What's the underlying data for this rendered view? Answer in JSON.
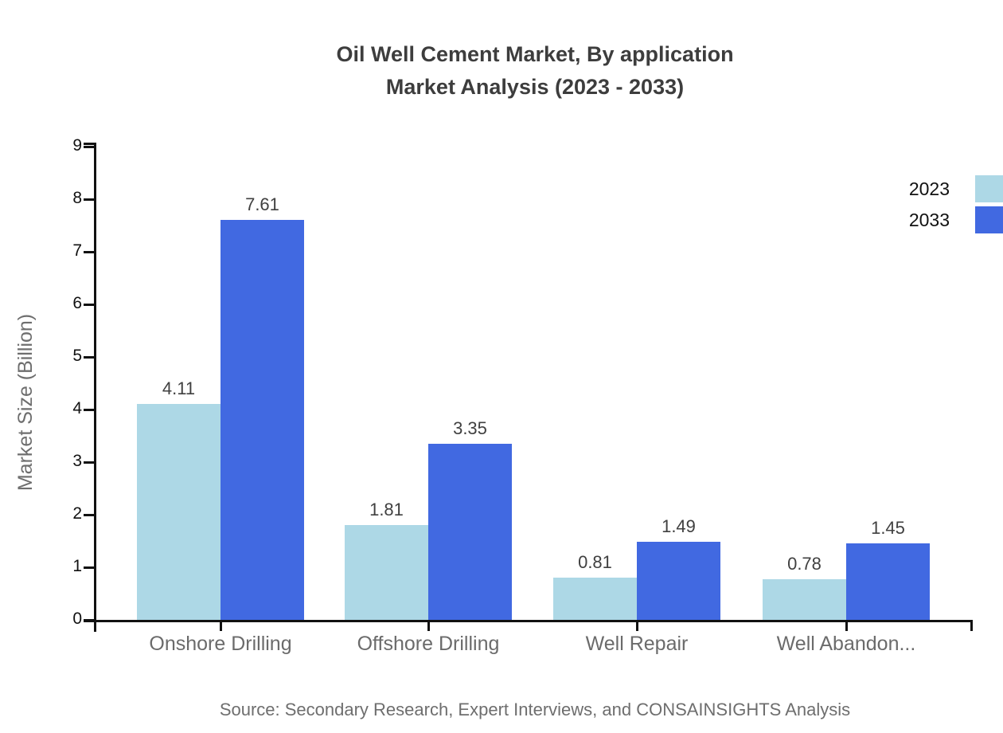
{
  "title": {
    "line1": "Oil Well Cement Market, By application",
    "line2": "Market Analysis (2023 - 2033)"
  },
  "source": {
    "text": "Source: Secondary Research, Expert Interviews, and CONSAINSIGHTS Analysis"
  },
  "colors": {
    "series_2023": "#ADD8E6",
    "series_2033": "#4169E1",
    "axis": "#111111",
    "title_text": "#3d3d3d",
    "muted_text": "#6e6e6e",
    "value_text": "#404040"
  },
  "chart_data": {
    "type": "bar",
    "title": "Oil Well Cement Market, By application Market Analysis (2023 - 2033)",
    "categories": [
      "Onshore Drilling",
      "Offshore Drilling",
      "Well Repair",
      "Well Abandon..."
    ],
    "series": [
      {
        "name": "2023",
        "color": "#ADD8E6",
        "values": [
          4.11,
          1.81,
          0.81,
          0.78
        ]
      },
      {
        "name": "2033",
        "color": "#4169E1",
        "values": [
          7.61,
          3.35,
          1.49,
          1.45
        ]
      }
    ],
    "xlabel": "",
    "ylabel": "Market Size (Billion)",
    "ylim": [
      0,
      9
    ],
    "y_ticks": [
      0,
      1,
      2,
      3,
      4,
      5,
      6,
      7,
      8,
      9
    ],
    "grid": false,
    "legend_position": "top-right",
    "value_labels": true
  }
}
